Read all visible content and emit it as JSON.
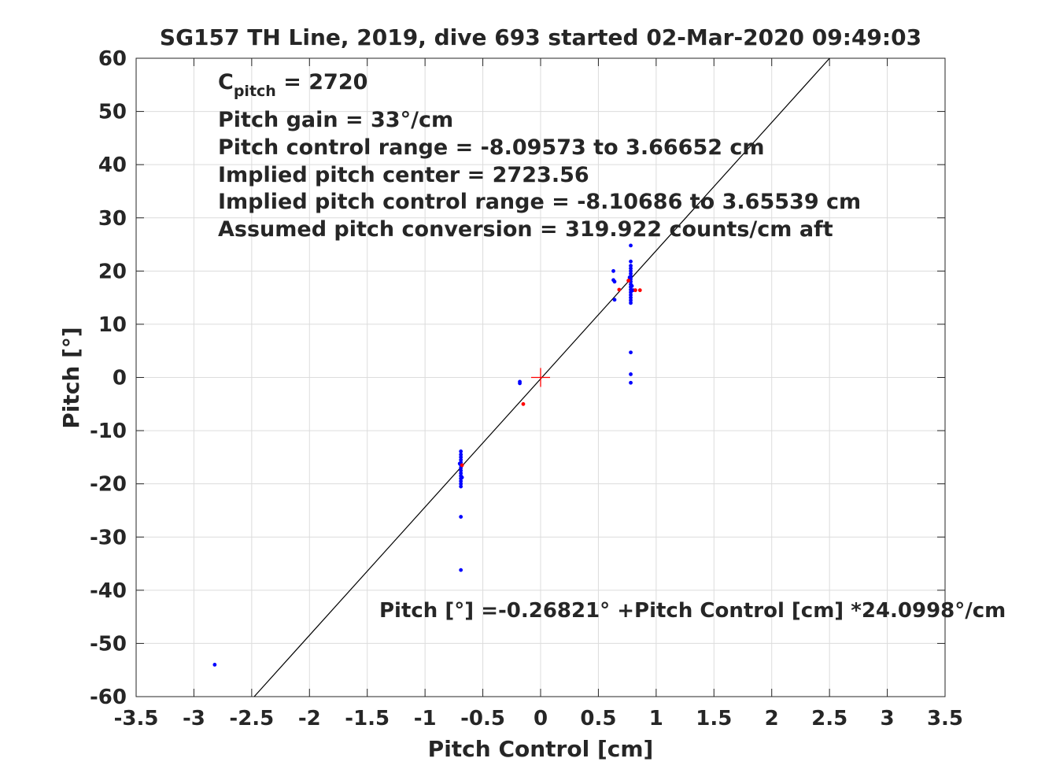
{
  "chart_data": {
    "type": "scatter",
    "title": "SG157 TH Line, 2019, dive 693 started 02-Mar-2020 09:49:03",
    "xlabel": "Pitch Control [cm]",
    "ylabel": "Pitch [°]",
    "xlim": [
      -3.5,
      3.5
    ],
    "ylim": [
      -60,
      60
    ],
    "xticks": [
      -3.5,
      -3,
      -2.5,
      -2,
      -1.5,
      -1,
      -0.5,
      0,
      0.5,
      1,
      1.5,
      2,
      2.5,
      3,
      3.5
    ],
    "yticks": [
      -60,
      -50,
      -40,
      -30,
      -20,
      -10,
      0,
      10,
      20,
      30,
      40,
      50,
      60
    ],
    "grid": true,
    "annotations": {
      "cpitch_base": "C",
      "cpitch_sub": "pitch",
      "cpitch_value": " = 2720",
      "lines": [
        "Pitch gain = 33°/cm",
        "Pitch control range = -8.09573 to 3.66652 cm",
        "Implied pitch center = 2723.56",
        "Implied pitch control range = -8.10686 to 3.65539 cm",
        "Assumed pitch conversion = 319.922 counts/cm aft"
      ],
      "fit_equation": "Pitch [°] =-0.26821° +Pitch Control [cm] *24.0998°/cm"
    },
    "fit_line": {
      "intercept": -0.26821,
      "slope": 24.0998,
      "color": "#000000"
    },
    "center_marker": {
      "x": 0,
      "y": 0,
      "color": "#ff0000"
    },
    "series": [
      {
        "color": "#0000ff",
        "points": [
          [
            -2.82,
            -54.0
          ],
          [
            -0.69,
            -13.9
          ],
          [
            -0.69,
            -14.5
          ],
          [
            -0.69,
            -15.0
          ],
          [
            -0.69,
            -15.5
          ],
          [
            -0.69,
            -16.0
          ],
          [
            -0.69,
            -16.5
          ],
          [
            -0.69,
            -17.0
          ],
          [
            -0.69,
            -17.5
          ],
          [
            -0.69,
            -18.0
          ],
          [
            -0.69,
            -18.5
          ],
          [
            -0.69,
            -19.0
          ],
          [
            -0.69,
            -19.5
          ],
          [
            -0.69,
            -20.0
          ],
          [
            -0.69,
            -20.5
          ],
          [
            -0.7,
            -16.2
          ],
          [
            -0.68,
            -18.8
          ],
          [
            -0.69,
            -26.2
          ],
          [
            -0.69,
            -36.2
          ],
          [
            -0.18,
            -0.8
          ],
          [
            -0.18,
            -1.1
          ],
          [
            0.63,
            20.0
          ],
          [
            0.63,
            18.3
          ],
          [
            0.64,
            18.0
          ],
          [
            0.64,
            14.6
          ],
          [
            0.78,
            24.8
          ],
          [
            0.78,
            21.8
          ],
          [
            0.78,
            21.0
          ],
          [
            0.78,
            20.5
          ],
          [
            0.78,
            20.0
          ],
          [
            0.78,
            19.5
          ],
          [
            0.78,
            19.0
          ],
          [
            0.78,
            18.5
          ],
          [
            0.78,
            18.0
          ],
          [
            0.78,
            17.5
          ],
          [
            0.78,
            17.0
          ],
          [
            0.78,
            16.5
          ],
          [
            0.78,
            16.0
          ],
          [
            0.78,
            15.5
          ],
          [
            0.78,
            15.0
          ],
          [
            0.78,
            14.5
          ],
          [
            0.78,
            14.0
          ],
          [
            0.77,
            18.8
          ],
          [
            0.79,
            17.2
          ],
          [
            0.8,
            16.4
          ],
          [
            0.78,
            4.7
          ],
          [
            0.78,
            0.6
          ],
          [
            0.78,
            -1.0
          ]
        ]
      },
      {
        "color": "#ff0000",
        "points": [
          [
            -0.68,
            -16.5
          ],
          [
            -0.15,
            -5.0
          ],
          [
            0.68,
            16.5
          ],
          [
            0.82,
            16.4
          ],
          [
            0.86,
            16.4
          ],
          [
            0.76,
            18.2
          ]
        ]
      }
    ]
  }
}
